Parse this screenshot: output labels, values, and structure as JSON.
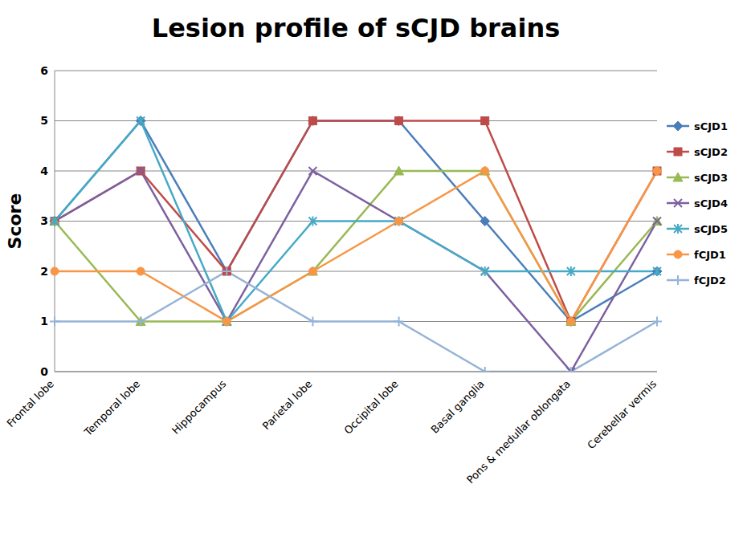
{
  "chart_data": {
    "type": "line",
    "title": "Lesion profile of sCJD brains",
    "y_label": "Score",
    "categories": [
      "Frontal lobe",
      "Temporal lobe",
      "Hippocampus",
      "Parietal lobe",
      "Occipital lobe",
      "Basal ganglia",
      "Pons & medullar oblongata",
      "Cerebellar vermis"
    ],
    "series": [
      {
        "name": "sCJD1",
        "color": "#4A7EBB",
        "marker": "diamond",
        "values": [
          3,
          5,
          2,
          5,
          5,
          3,
          1,
          2
        ]
      },
      {
        "name": "sCJD2",
        "color": "#BE4B48",
        "marker": "square",
        "values": [
          3,
          4,
          2,
          5,
          5,
          5,
          1,
          4
        ]
      },
      {
        "name": "sCJD3",
        "color": "#98B954",
        "marker": "triangle",
        "values": [
          3,
          1,
          1,
          2,
          4,
          4,
          1,
          3
        ]
      },
      {
        "name": "sCJD4",
        "color": "#7D60A0",
        "marker": "x",
        "values": [
          3,
          4,
          1,
          4,
          3,
          2,
          0,
          3
        ]
      },
      {
        "name": "sCJD5",
        "color": "#46AAC5",
        "marker": "star",
        "values": [
          3,
          5,
          1,
          3,
          3,
          2,
          2,
          2
        ]
      },
      {
        "name": "fCJD1",
        "color": "#F79646",
        "marker": "circle",
        "values": [
          2,
          2,
          1,
          2,
          3,
          4,
          1,
          4
        ]
      },
      {
        "name": "fCJD2",
        "color": "#95B3D7",
        "marker": "plus",
        "values": [
          1,
          1,
          2,
          1,
          1,
          0,
          0,
          1
        ]
      }
    ],
    "ylim": [
      0,
      6
    ],
    "yticks": [
      0,
      1,
      2,
      3,
      4,
      5,
      6
    ],
    "grid": true,
    "legend": "right"
  }
}
